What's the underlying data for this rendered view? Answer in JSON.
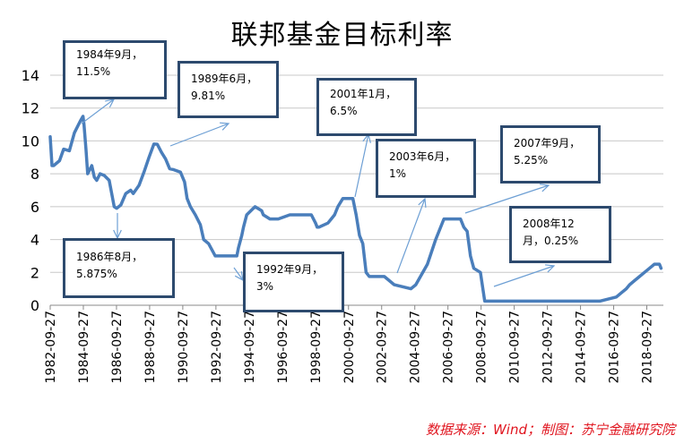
{
  "title": "联邦基金目标利率",
  "source": "数据来源：Wind；制图：苏宁金融研究院",
  "colors": {
    "line": "#4a7ebb",
    "box_border": "#2d4a6e",
    "arrow": "#6d9fd4",
    "grid": "#c8c8c8",
    "source_text": "#e0141e"
  },
  "annotations": [
    {
      "line1": "1984年9月，",
      "line2": "11.5%"
    },
    {
      "line1": "1989年6月，",
      "line2": "9.81%"
    },
    {
      "line1": "2001年1月，",
      "line2": "6.5%"
    },
    {
      "line1": "2003年6月，",
      "line2": "1%"
    },
    {
      "line1": "2007年9月，",
      "line2": "5.25%"
    },
    {
      "line1": "1986年8月，",
      "line2": "5.875%"
    },
    {
      "line1": "1992年9月，",
      "line2": "3%"
    },
    {
      "line1": "2008年12",
      "line2": "月，0.25%"
    }
  ],
  "chart_data": {
    "type": "line",
    "title": "联邦基金目标利率",
    "xlabel": "",
    "ylabel": "",
    "ylim": [
      0,
      14
    ],
    "yticks": [
      0,
      2,
      4,
      6,
      8,
      10,
      12,
      14
    ],
    "xlim": [
      1982.74,
      2019.74
    ],
    "xticks": [
      "1982-09-27",
      "1984-09-27",
      "1986-09-27",
      "1988-09-27",
      "1990-09-27",
      "1992-09-27",
      "1994-09-27",
      "1996-09-27",
      "1998-09-27",
      "2000-09-27",
      "2002-09-27",
      "2004-09-27",
      "2006-09-27",
      "2008-09-27",
      "2010-09-27",
      "2012-09-27",
      "2014-09-27",
      "2016-09-27",
      "2018-09-27"
    ],
    "xtick_years": [
      1982.74,
      1984.74,
      1986.74,
      1988.74,
      1990.74,
      1992.74,
      1994.74,
      1996.74,
      1998.74,
      2000.74,
      2002.74,
      2004.74,
      2006.74,
      2008.74,
      2010.74,
      2012.74,
      2014.74,
      2016.74,
      2018.74
    ],
    "grid": "horizontal",
    "series": [
      {
        "x": [
          1982.74,
          1982.85,
          1982.95,
          1983.3,
          1983.55,
          1983.9,
          1984.2,
          1984.55,
          1984.72,
          1984.78,
          1984.9,
          1985.0,
          1985.25,
          1985.4,
          1985.55,
          1985.75,
          1986.0,
          1986.3,
          1986.45,
          1986.6,
          1986.75,
          1987.0,
          1987.3,
          1987.6,
          1987.75,
          1988.1,
          1988.4,
          1988.7,
          1989.0,
          1989.2,
          1989.46,
          1989.7,
          1989.95,
          1990.2,
          1990.6,
          1990.85,
          1991.0,
          1991.2,
          1991.5,
          1991.8,
          1992.0,
          1992.3,
          1992.7,
          1993.0,
          1993.5,
          1994.0,
          1994.1,
          1994.3,
          1994.4,
          1994.6,
          1994.85,
          1995.1,
          1995.5,
          1995.6,
          1996.0,
          1996.5,
          1997.2,
          1997.8,
          1998.5,
          1998.75,
          1998.85,
          1998.95,
          1999.5,
          1999.7,
          1999.9,
          2000.1,
          2000.4,
          2001.0,
          2001.2,
          2001.4,
          2001.6,
          2001.8,
          2002.0,
          2002.9,
          2003.5,
          2004.5,
          2004.8,
          2005.5,
          2006.0,
          2006.5,
          2006.7,
          2007.0,
          2007.5,
          2007.7,
          2007.9,
          2008.1,
          2008.3,
          2008.7,
          2008.96,
          2009.5,
          2015.9,
          2016.9,
          2017.2,
          2017.5,
          2017.7,
          2018.0,
          2018.3,
          2018.6,
          2018.9,
          2019.2,
          2019.5,
          2019.6
        ],
        "y": [
          10.25,
          8.5,
          8.5,
          8.8,
          9.5,
          9.4,
          10.5,
          11.2,
          11.5,
          11.0,
          9.5,
          8.0,
          8.5,
          7.8,
          7.6,
          8.0,
          7.9,
          7.6,
          6.8,
          6.0,
          5.9,
          6.1,
          6.8,
          7.0,
          6.8,
          7.3,
          8.1,
          9.0,
          9.81,
          9.8,
          9.3,
          8.9,
          8.3,
          8.25,
          8.1,
          7.5,
          6.5,
          6.0,
          5.5,
          4.9,
          4.0,
          3.75,
          3.0,
          3.0,
          3.0,
          3.0,
          3.5,
          4.25,
          4.75,
          5.5,
          5.75,
          6.0,
          5.75,
          5.5,
          5.25,
          5.25,
          5.5,
          5.5,
          5.5,
          5.0,
          4.75,
          4.75,
          5.0,
          5.25,
          5.5,
          6.0,
          6.5,
          6.5,
          5.5,
          4.25,
          3.75,
          2.0,
          1.75,
          1.75,
          1.25,
          1.0,
          1.25,
          2.5,
          4.0,
          5.25,
          5.25,
          5.25,
          5.25,
          4.75,
          4.5,
          3.0,
          2.25,
          2.0,
          0.25,
          0.25,
          0.25,
          0.5,
          0.75,
          1.0,
          1.25,
          1.5,
          1.75,
          2.0,
          2.25,
          2.5,
          2.5,
          2.25
        ]
      }
    ]
  }
}
